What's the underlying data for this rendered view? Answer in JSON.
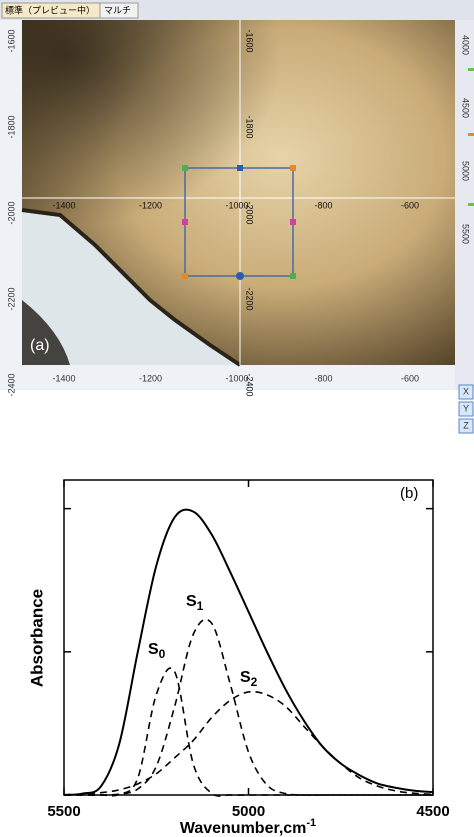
{
  "panel_a": {
    "tabs": [
      "標準（プレビュー中）",
      "マルチ"
    ],
    "label": "(a)",
    "left_ruler": [
      -1600,
      -1800,
      -2000,
      -2200,
      -2400
    ],
    "bottom_ruler": [
      -1400,
      -1200,
      -1000,
      -800,
      -600
    ],
    "overlay_x": [
      -1400,
      -1200,
      -1000,
      -800,
      -600
    ],
    "overlay_y": [
      -1600,
      -1800,
      -2000,
      -2200,
      -2400
    ],
    "side_ruler": [
      4000,
      4500,
      5000,
      5500
    ],
    "buttons": [
      "X",
      "Y",
      "Z"
    ]
  },
  "chart_data": {
    "type": "line",
    "label": "(b)",
    "x_label": "Wavenumber,cm",
    "x_label_superscript": "-1",
    "y_label": "Absorbance",
    "x": [
      5500,
      5450,
      5400,
      5350,
      5300,
      5250,
      5200,
      5150,
      5100,
      5050,
      5000,
      4950,
      4900,
      4850,
      4800,
      4750,
      4700,
      4650,
      4600,
      4550,
      4500
    ],
    "series": [
      {
        "color": "#000000",
        "dash": false,
        "values": [
          0,
          0.005,
          0.03,
          0.18,
          0.5,
          0.8,
          0.97,
          0.99,
          0.91,
          0.78,
          0.64,
          0.5,
          0.37,
          0.26,
          0.17,
          0.11,
          0.07,
          0.04,
          0.025,
          0.015,
          0.01
        ]
      },
      {
        "color": "#000000",
        "dash": true,
        "values": [
          0,
          0,
          0,
          0.002,
          0.059,
          0.35,
          0.43,
          0.11,
          0.006,
          0,
          0,
          0,
          0,
          0,
          0,
          0,
          0,
          0,
          0,
          0,
          0
        ]
      },
      {
        "color": "#000000",
        "dash": true,
        "values": [
          0,
          0,
          0,
          0.003,
          0.021,
          0.1,
          0.31,
          0.56,
          0.6,
          0.39,
          0.15,
          0.035,
          0.005,
          0,
          0,
          0,
          0,
          0,
          0,
          0,
          0
        ]
      },
      {
        "color": "#000000",
        "dash": true,
        "values": [
          0.001,
          0.003,
          0.008,
          0.018,
          0.039,
          0.074,
          0.13,
          0.19,
          0.27,
          0.33,
          0.36,
          0.35,
          0.31,
          0.24,
          0.17,
          0.11,
          0.06,
          0.031,
          0.014,
          0.006,
          0.002
        ]
      }
    ],
    "annotations": [
      {
        "text": "S",
        "subscript": "0"
      },
      {
        "text": "S",
        "subscript": "1"
      },
      {
        "text": "S",
        "subscript": "2"
      }
    ],
    "xlim": [
      5500,
      4500
    ],
    "xticks": [
      5500,
      5000,
      4500
    ],
    "ylim": [
      0,
      1.1
    ],
    "yticks": [
      0,
      0.5,
      1
    ]
  }
}
